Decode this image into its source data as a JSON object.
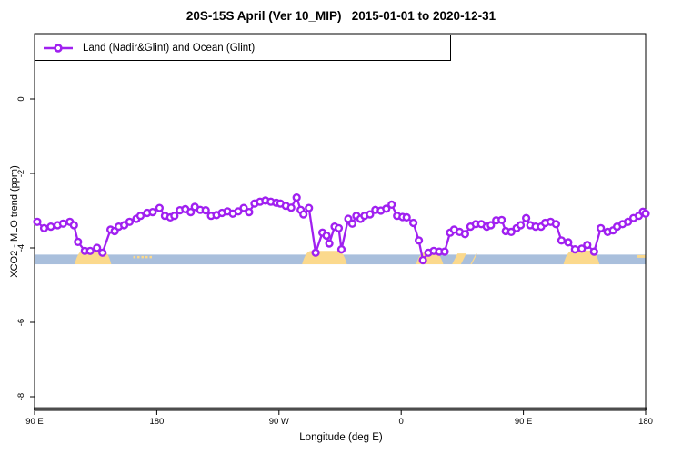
{
  "title": "20S-15S April (Ver 10_MIP)   2015-01-01 to 2020-12-31",
  "legend": {
    "label": "Land (Nadir&Glint) and Ocean (Glint)",
    "marker": "open-circle-on-line"
  },
  "colors": {
    "series": "#A020F0",
    "ocean_band": "#A9BFDC",
    "land_band": "#FBD98D",
    "axis_line": "#4D4D4D",
    "plot_border": "#000000",
    "text": "#000000",
    "background": "#FFFFFF"
  },
  "chart_data": {
    "type": "line",
    "title": "20S-15S April (Ver 10_MIP)   2015-01-01 to 2020-12-31",
    "xlabel": "Longitude (deg E)",
    "ylabel": "XCO2 - MLO trend (ppm)",
    "xlim": [
      90,
      540
    ],
    "ylim": [
      -8.4,
      1.76
    ],
    "grid": false,
    "legend_position": "top-left",
    "x_ticks": [
      {
        "value": 90,
        "label": "90 E"
      },
      {
        "value": 180,
        "label": "180"
      },
      {
        "value": 270,
        "label": "90 W"
      },
      {
        "value": 360,
        "label": "0"
      },
      {
        "value": 450,
        "label": "90 E"
      },
      {
        "value": 540,
        "label": "180"
      }
    ],
    "y_ticks": [
      {
        "value": 0,
        "label": "0"
      },
      {
        "value": -2,
        "label": "-2"
      },
      {
        "value": -4,
        "label": "-4"
      },
      {
        "value": -6,
        "label": "-6"
      },
      {
        "value": -8,
        "label": "-8"
      }
    ],
    "series": [
      {
        "name": "Land (Nadir&Glint) and Ocean (Glint)",
        "color": "#A020F0",
        "marker": "open-circle",
        "x": [
          92,
          97,
          102,
          107,
          111,
          116,
          119,
          122,
          127,
          131,
          136,
          140,
          146,
          149,
          152,
          156,
          160,
          165,
          168,
          173,
          177,
          182,
          186,
          190,
          193,
          197,
          201,
          205,
          208,
          212,
          216,
          220,
          224,
          228,
          232,
          236,
          240,
          244,
          248,
          252,
          256,
          260,
          264,
          268,
          271,
          275,
          279,
          283,
          286,
          288,
          292,
          297,
          302,
          305,
          307,
          311,
          314,
          316,
          321,
          324,
          327,
          330,
          333,
          337,
          341,
          345,
          349,
          353,
          357,
          361,
          364,
          369,
          373,
          376,
          380,
          384,
          388,
          392,
          396,
          399,
          403,
          407,
          411,
          415,
          419,
          423,
          426,
          430,
          434,
          437,
          441,
          445,
          448,
          452,
          455,
          459,
          463,
          466,
          470,
          474,
          478,
          483,
          488,
          493,
          497,
          502,
          507,
          512,
          516,
          519,
          523,
          527,
          531,
          535,
          538,
          540
        ],
        "y": [
          -3.3,
          -3.47,
          -3.43,
          -3.39,
          -3.35,
          -3.3,
          -3.39,
          -3.84,
          -4.08,
          -4.08,
          -4.0,
          -4.13,
          -3.51,
          -3.55,
          -3.43,
          -3.39,
          -3.3,
          -3.22,
          -3.14,
          -3.06,
          -3.04,
          -2.93,
          -3.14,
          -3.18,
          -3.14,
          -2.99,
          -2.96,
          -3.04,
          -2.9,
          -2.98,
          -2.99,
          -3.14,
          -3.12,
          -3.06,
          -3.02,
          -3.08,
          -3.02,
          -2.93,
          -3.04,
          -2.81,
          -2.76,
          -2.73,
          -2.76,
          -2.79,
          -2.81,
          -2.87,
          -2.92,
          -2.65,
          -2.98,
          -3.1,
          -2.93,
          -4.13,
          -3.59,
          -3.67,
          -3.88,
          -3.43,
          -3.47,
          -4.04,
          -3.22,
          -3.35,
          -3.14,
          -3.22,
          -3.14,
          -3.1,
          -2.98,
          -3.0,
          -2.95,
          -2.84,
          -3.14,
          -3.17,
          -3.18,
          -3.33,
          -3.8,
          -4.33,
          -4.13,
          -4.08,
          -4.1,
          -4.1,
          -3.59,
          -3.51,
          -3.57,
          -3.63,
          -3.43,
          -3.36,
          -3.36,
          -3.43,
          -3.39,
          -3.26,
          -3.25,
          -3.55,
          -3.57,
          -3.47,
          -3.39,
          -3.2,
          -3.39,
          -3.43,
          -3.43,
          -3.33,
          -3.3,
          -3.36,
          -3.8,
          -3.85,
          -4.04,
          -4.02,
          -3.92,
          -4.1,
          -3.47,
          -3.57,
          -3.53,
          -3.43,
          -3.36,
          -3.3,
          -3.2,
          -3.14,
          -3.03,
          -3.08
        ]
      }
    ],
    "map_strip": {
      "description": "surface-type band: blue = ocean, orange = land",
      "value_top": -4.18,
      "value_bottom": -4.44,
      "ocean_span": [
        90,
        540
      ],
      "land_regions": [
        {
          "from": 119.5,
          "to": 146.5,
          "type": "hump",
          "rise": 0.12
        },
        {
          "from": 287.0,
          "to": 320.0,
          "type": "hump",
          "rise": 0.1
        },
        {
          "from": 371.0,
          "to": 391.0,
          "type": "hump",
          "rise": 0.06
        },
        {
          "from": 397.5,
          "to": 408.0,
          "type": "stripe",
          "rise": 0.03
        },
        {
          "from": 411.0,
          "to": 416.0,
          "type": "stripe",
          "rise": 0.02
        },
        {
          "from": 479.5,
          "to": 506.0,
          "type": "hump",
          "rise": 0.11
        },
        {
          "from": 534.0,
          "to": 540.0,
          "type": "dash",
          "rise": 0.0
        }
      ],
      "island_dots": [
        163.5,
        166.5,
        169.5,
        172.5,
        175.5
      ]
    }
  }
}
